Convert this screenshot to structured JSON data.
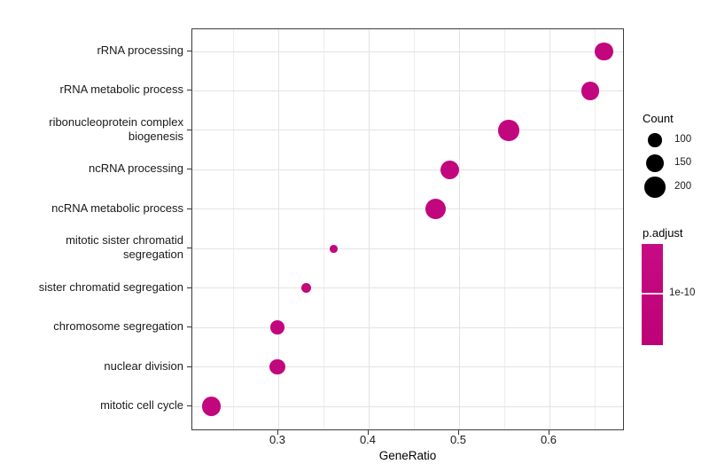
{
  "chart_data": {
    "type": "scatter",
    "title": "",
    "xlabel": "GeneRatio",
    "ylabel": "",
    "grid": true,
    "x_axis": {
      "range": [
        0.205,
        0.683
      ],
      "major_ticks": [
        {
          "value": 0.3,
          "label": "0.3"
        },
        {
          "value": 0.4,
          "label": "0.4"
        },
        {
          "value": 0.5,
          "label": "0.5"
        },
        {
          "value": 0.6,
          "label": "0.6"
        }
      ],
      "minor_ticks": [
        0.25,
        0.35,
        0.45,
        0.55,
        0.65
      ]
    },
    "categories": [
      "rRNA processing",
      "rRNA metabolic process",
      "ribonucleoprotein complex biogenesis",
      "ncRNA processing",
      "ncRNA metabolic process",
      "mitotic sister chromatid segregation",
      "sister chromatid segregation",
      "chromosome segregation",
      "nuclear division",
      "mitotic cell cycle"
    ],
    "points": [
      {
        "term": "rRNA processing",
        "gene_ratio": 0.66,
        "count": 163
      },
      {
        "term": "rRNA metabolic process",
        "gene_ratio": 0.645,
        "count": 158
      },
      {
        "term": "ribonucleoprotein complex biogenesis",
        "gene_ratio": 0.555,
        "count": 197
      },
      {
        "term": "ncRNA processing",
        "gene_ratio": 0.49,
        "count": 168
      },
      {
        "term": "ncRNA metabolic process",
        "gene_ratio": 0.474,
        "count": 195
      },
      {
        "term": "mitotic sister chromatid segregation",
        "gene_ratio": 0.361,
        "count": 46
      },
      {
        "term": "sister chromatid segregation",
        "gene_ratio": 0.331,
        "count": 65
      },
      {
        "term": "chromosome segregation",
        "gene_ratio": 0.299,
        "count": 100
      },
      {
        "term": "nuclear division",
        "gene_ratio": 0.299,
        "count": 121
      },
      {
        "term": "mitotic cell cycle",
        "gene_ratio": 0.226,
        "count": 171
      }
    ],
    "legend_size": {
      "title": "Count",
      "items": [
        {
          "count": 100,
          "label": "100"
        },
        {
          "count": 150,
          "label": "150"
        },
        {
          "count": 200,
          "label": "200"
        }
      ]
    },
    "legend_color": {
      "title": "p.adjust",
      "tick_label": "1e-10",
      "tick_fraction": 0.49
    },
    "colors": {
      "dot": "#C2067E",
      "colorbar_top": "#C60B84",
      "colorbar_bottom": "#BD0277",
      "grid_major": "#E3E3E3",
      "grid_minor": "#EDEDED",
      "panel_border": "#3C3C3C",
      "legend_circle": "#000000",
      "text": "#1A1A1A"
    }
  }
}
